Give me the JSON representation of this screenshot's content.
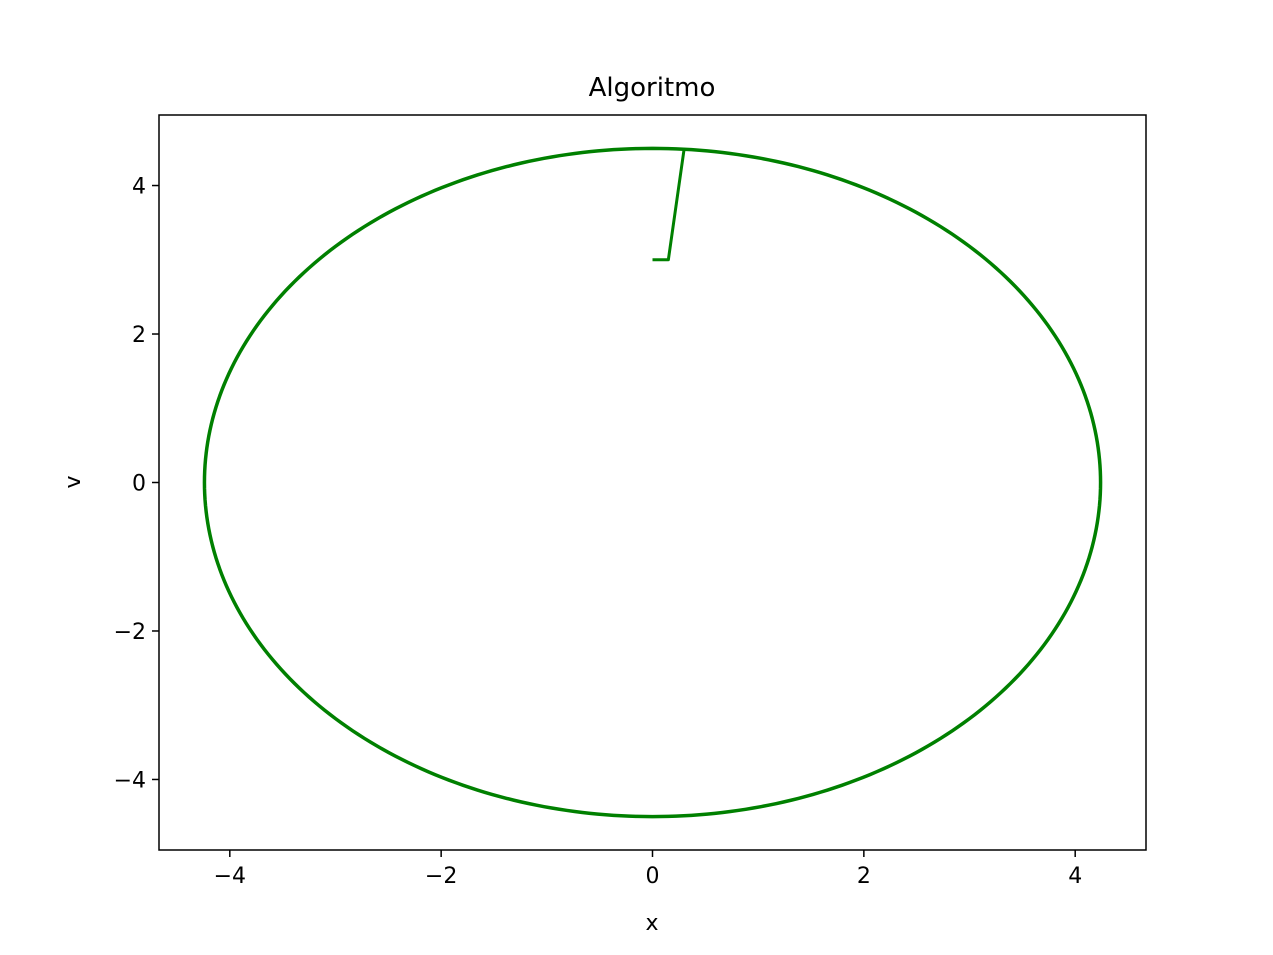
{
  "chart_data": {
    "type": "line",
    "title": "Algoritmo",
    "xlabel": "x",
    "ylabel": "v",
    "xlim": [
      -4.67,
      4.67
    ],
    "ylim": [
      -4.95,
      4.95
    ],
    "xticks": [
      -4,
      -2,
      0,
      2,
      4
    ],
    "yticks": [
      -4,
      -2,
      0,
      2,
      4
    ],
    "xtick_labels": [
      "−4",
      "−2",
      "0",
      "2",
      "4"
    ],
    "ytick_labels": [
      "−4",
      "−2",
      "0",
      "2",
      "4"
    ],
    "grid": false,
    "series": [
      {
        "color": "#008000",
        "description": "initial transient segment",
        "x": [
          0.0,
          0.15,
          0.3
        ],
        "y": [
          3.0,
          3.0,
          4.5
        ]
      },
      {
        "color": "#008000",
        "description": "closed orbit",
        "shape": "ellipse",
        "center": [
          0.0,
          0.0
        ],
        "x_semi_axis": 4.24,
        "y_semi_axis": 4.5
      }
    ]
  }
}
